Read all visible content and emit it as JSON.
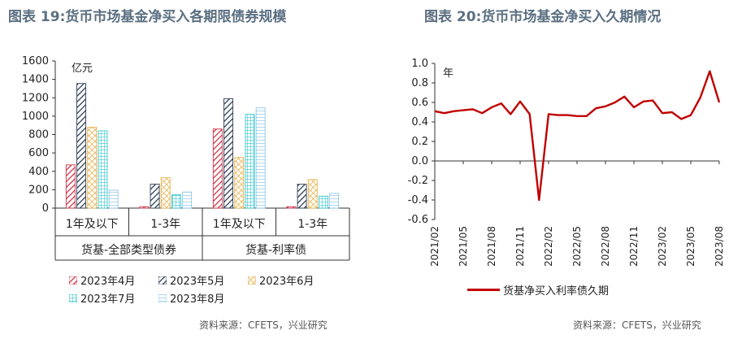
{
  "left": {
    "title": "图表 19:货币市场基金净买入各期限债券规模",
    "source": "资料来源：CFETS，兴业研究",
    "chart_data": {
      "type": "bar",
      "unit_label": "亿元",
      "ylim": [
        0,
        1600
      ],
      "yticks": [
        "0",
        "200",
        "400",
        "600",
        "800",
        "1000",
        "1200",
        "1400",
        "1600"
      ],
      "categories": [
        "1年及以下",
        "1-3年",
        "1年及以下",
        "1-3年"
      ],
      "groups": [
        "货基-全部类型债券",
        "货基-利率债"
      ],
      "series": [
        {
          "name": "2023年4月",
          "values": [
            470,
            15,
            860,
            15
          ],
          "color": "#d0354a",
          "pattern": "hatch-red"
        },
        {
          "name": "2023年5月",
          "values": [
            1355,
            260,
            1190,
            260
          ],
          "color": "#2e3e55",
          "pattern": "hatch-navy"
        },
        {
          "name": "2023年6月",
          "values": [
            880,
            330,
            550,
            310
          ],
          "color": "#e6b04a",
          "pattern": "cross-gold"
        },
        {
          "name": "2023年7月",
          "values": [
            840,
            145,
            1020,
            130
          ],
          "color": "#3cc7cf",
          "pattern": "grid-cyan"
        },
        {
          "name": "2023年8月",
          "values": [
            195,
            175,
            1090,
            160
          ],
          "color": "#8ec6ea",
          "pattern": "lines-blue"
        }
      ]
    }
  },
  "right": {
    "title": "图表 20:货币市场基金净买入久期情况",
    "source": "资料来源：CFETS，兴业研究",
    "chart_data": {
      "type": "line",
      "unit_label": "年",
      "ylim": [
        -0.6,
        1.0
      ],
      "yticks": [
        "-0.6",
        "-0.4",
        "-0.2",
        "0.0",
        "0.2",
        "0.4",
        "0.6",
        "0.8",
        "1.0"
      ],
      "xticks": [
        "2021/02",
        "2021/05",
        "2021/08",
        "2021/11",
        "2022/02",
        "2022/05",
        "2022/08",
        "2022/11",
        "2023/02",
        "2023/05",
        "2023/08"
      ],
      "series": [
        {
          "name": "货基净买入利率债久期",
          "color": "#c00000",
          "x": [
            "2021/02",
            "2021/03",
            "2021/04",
            "2021/05",
            "2021/06",
            "2021/07",
            "2021/08",
            "2021/09",
            "2021/10",
            "2021/11",
            "2021/12",
            "2022/01",
            "2022/02",
            "2022/03",
            "2022/04",
            "2022/05",
            "2022/06",
            "2022/07",
            "2022/08",
            "2022/09",
            "2022/10",
            "2022/11",
            "2022/12",
            "2023/01",
            "2023/02",
            "2023/03",
            "2023/04",
            "2023/05",
            "2023/06",
            "2023/07",
            "2023/08"
          ],
          "values": [
            0.51,
            0.49,
            0.51,
            0.52,
            0.53,
            0.49,
            0.55,
            0.59,
            0.48,
            0.61,
            0.48,
            -0.4,
            0.48,
            0.47,
            0.47,
            0.46,
            0.46,
            0.54,
            0.56,
            0.6,
            0.66,
            0.55,
            0.61,
            0.62,
            0.49,
            0.5,
            0.43,
            0.47,
            0.65,
            0.92,
            0.6
          ]
        }
      ]
    }
  }
}
